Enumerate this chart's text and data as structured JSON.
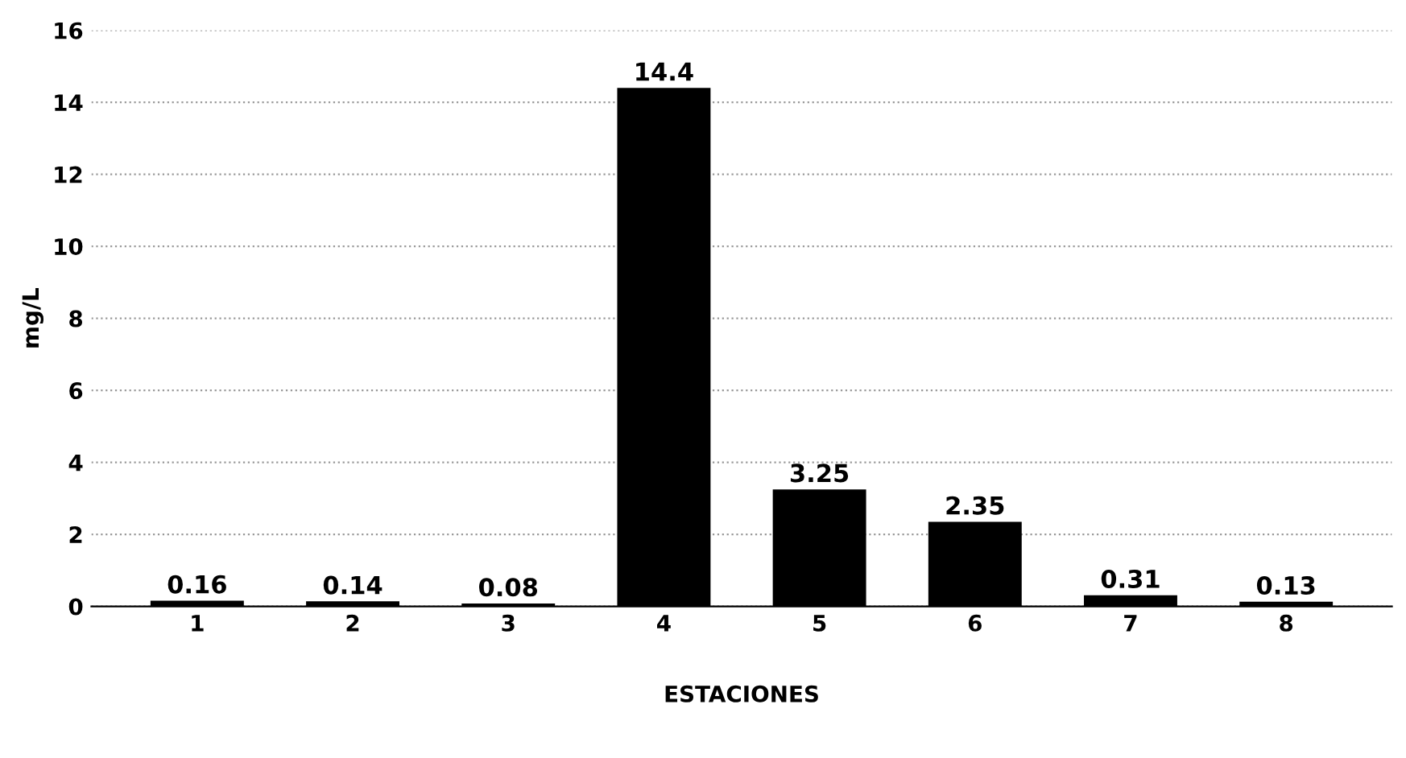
{
  "chart_data": {
    "type": "bar",
    "xlabel": "ESTACIONES",
    "ylabel": "mg/L",
    "categories": [
      "1",
      "2",
      "3",
      "4",
      "5",
      "6",
      "7",
      "8"
    ],
    "values": [
      0.16,
      0.14,
      0.08,
      14.4,
      3.25,
      2.35,
      0.31,
      0.13
    ],
    "color": "#000000",
    "ylim": [
      0,
      16
    ],
    "yticks": [
      0,
      2,
      4,
      6,
      8,
      10,
      12,
      14,
      16
    ],
    "grid": "y",
    "data_labels": true
  }
}
